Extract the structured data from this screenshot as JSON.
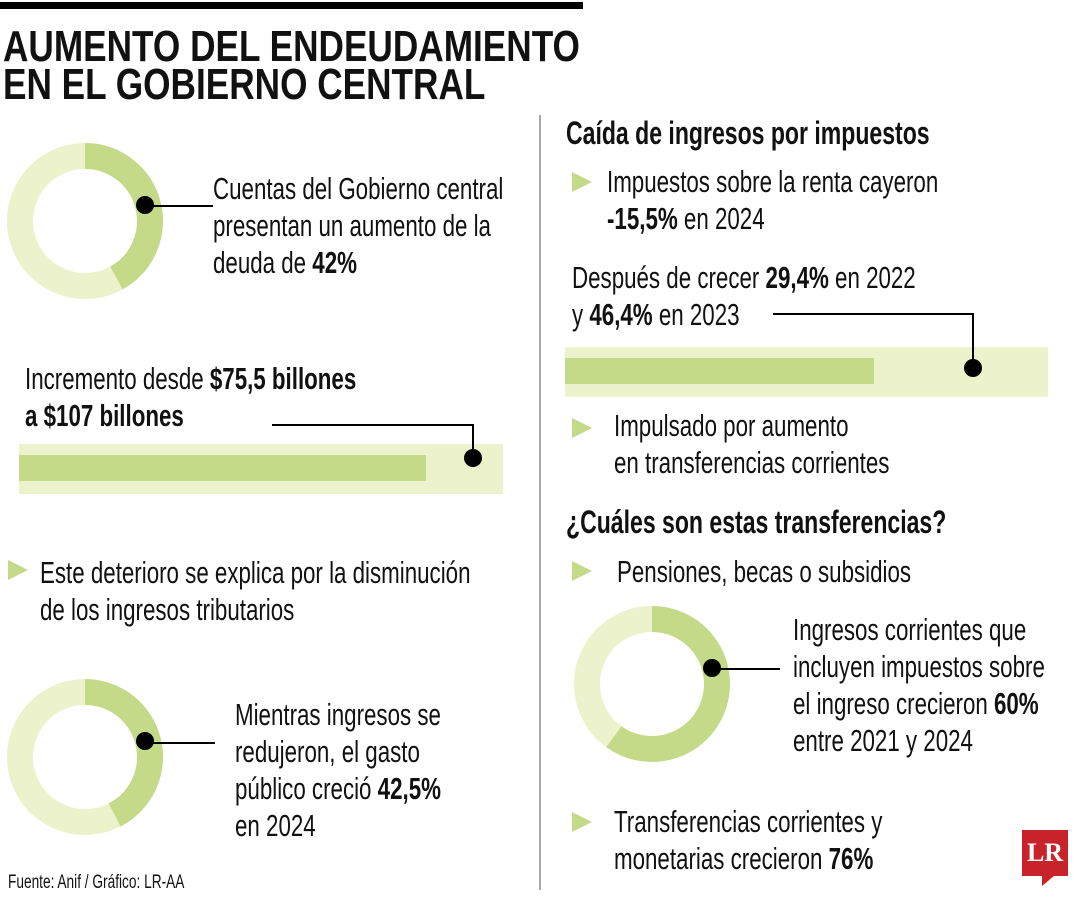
{
  "title": {
    "line1": "AUMENTO DEL ENDEUDAMIENTO",
    "line2": "EN EL GOBIERNO CENTRAL"
  },
  "colors": {
    "fill": "#c5da88",
    "track": "#ebf2cc",
    "logo": "#c8232a"
  },
  "left": {
    "donut1": {
      "l1": "Cuentas del Gobierno central",
      "l2": "presentan un aumento de la",
      "l3a": "deuda de ",
      "l3b": "42%"
    },
    "bar1": {
      "l1a": "Incremento desde ",
      "l1b": "$75,5 billones",
      "l2": "a $107 billones"
    },
    "bullet1": {
      "l1": "Este deterioro se explica por la disminución",
      "l2": "de los ingresos tributarios"
    },
    "donut2": {
      "l1": "Mientras ingresos se",
      "l2": "redujeron, el gasto",
      "l3a": "público creció ",
      "l3b": "42,5%",
      "l4": "en 2024"
    }
  },
  "right": {
    "heading1": "Caída de ingresos por impuestos",
    "bullet1": {
      "l1": "Impuestos sobre la renta cayeron",
      "l2a": "-15,5%",
      "l2b": " en 2024"
    },
    "bar2": {
      "l1a": "Después de crecer ",
      "l1b": "29,4%",
      "l1c": " en 2022",
      "l2a": "y ",
      "l2b": "46,4%",
      "l2c": " en 2023"
    },
    "bullet2": {
      "l1": "Impulsado por aumento",
      "l2": "en transferencias corrientes"
    },
    "heading2": "¿Cuáles son estas transferencias?",
    "bullet3": "Pensiones, becas o subsidios",
    "donut3": {
      "l1": "Ingresos corrientes que",
      "l2": "incluyen impuestos sobre",
      "l3a": "el ingreso crecieron ",
      "l3b": "60%",
      "l4": "entre 2021 y 2024"
    },
    "bullet4": {
      "l1": "Transferencias corrientes y",
      "l2a": "monetarias crecieron ",
      "l2b": "76%"
    }
  },
  "footer": "Fuente: Anif / Gráfico: LR-AA",
  "logo": "LR",
  "chart_data": [
    {
      "type": "pie",
      "name": "donut1",
      "values": [
        42,
        58
      ],
      "unit": "%"
    },
    {
      "type": "bar",
      "name": "bar1",
      "fill_fraction": 0.84
    },
    {
      "type": "pie",
      "name": "donut2",
      "values": [
        42.5,
        57.5
      ],
      "unit": "%"
    },
    {
      "type": "bar",
      "name": "bar2",
      "fill_fraction": 0.64
    },
    {
      "type": "pie",
      "name": "donut3",
      "values": [
        60,
        40
      ],
      "unit": "%"
    }
  ]
}
